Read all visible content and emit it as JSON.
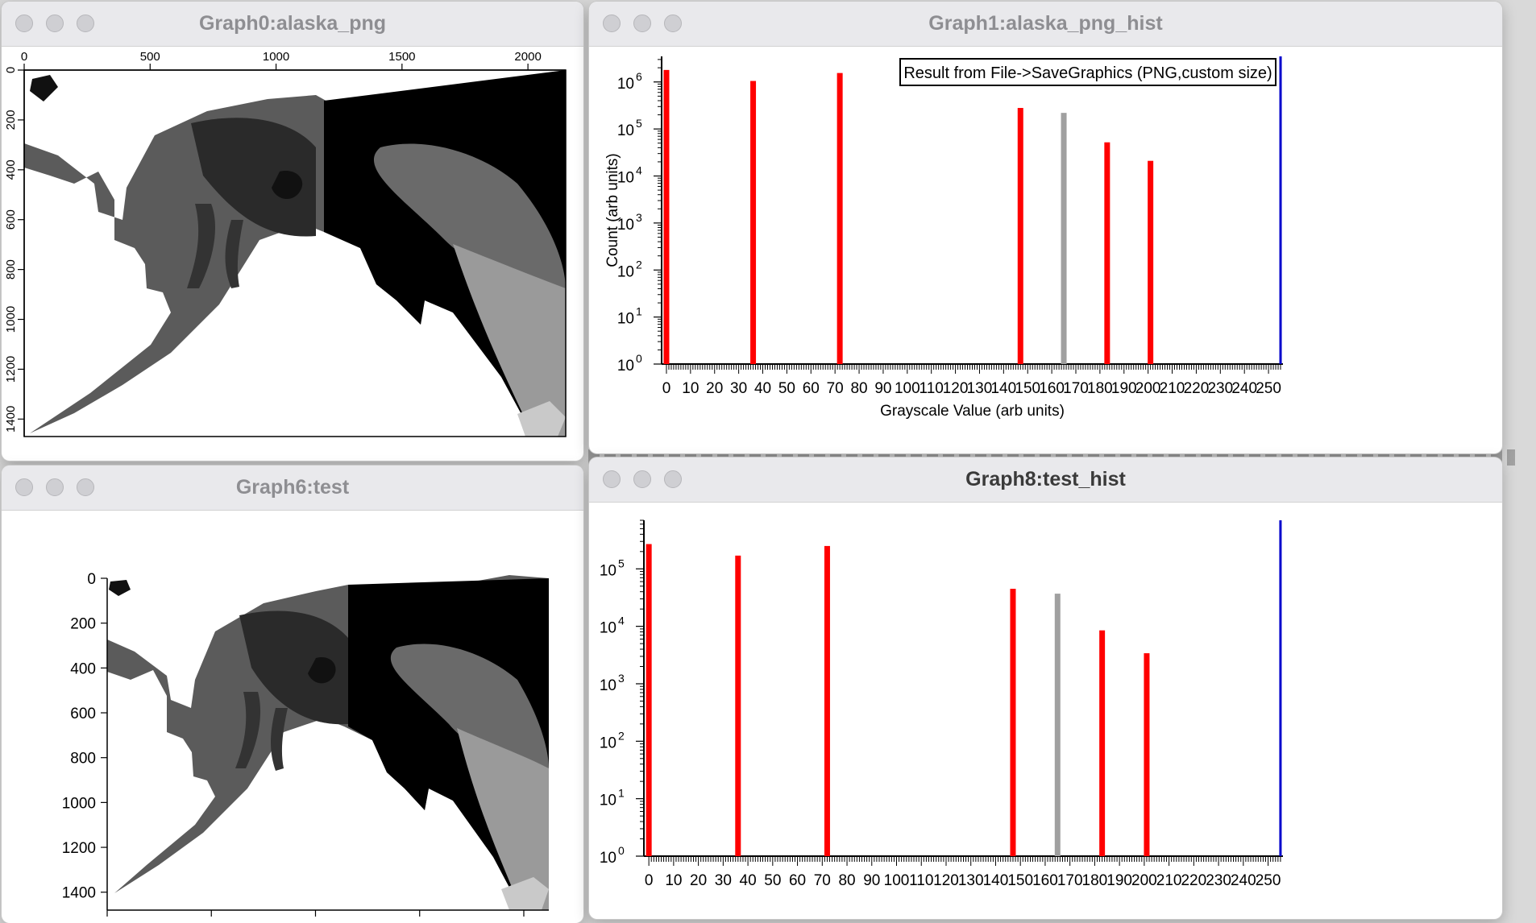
{
  "windows": {
    "graph0": {
      "title": "Graph0:alaska_png",
      "x_ticks": [
        "0",
        "500",
        "1000",
        "1500",
        "2000"
      ],
      "y_ticks": [
        "0",
        "200",
        "400",
        "600",
        "800",
        "1000",
        "1200",
        "1400"
      ]
    },
    "graph1": {
      "title": "Graph1:alaska_png_hist",
      "annotation": "Result from File->SaveGraphics (PNG,custom size)",
      "xlabel": "Grayscale Value (arb units)",
      "ylabel": "Count (arb units)",
      "x_ticks": [
        "0",
        "10",
        "20",
        "30",
        "40",
        "50",
        "60",
        "70",
        "80",
        "90",
        "100",
        "110",
        "120",
        "130",
        "140",
        "150",
        "160",
        "170",
        "180",
        "190",
        "200",
        "210",
        "220",
        "230",
        "240",
        "250"
      ],
      "y_ticks": [
        "10",
        "10",
        "10",
        "10",
        "10",
        "10",
        "10"
      ],
      "y_exps": [
        "0",
        "1",
        "2",
        "3",
        "4",
        "5",
        "6"
      ]
    },
    "graph6": {
      "title": "Graph6:test",
      "x_ticks": [
        "0",
        "500",
        "1000",
        "1500",
        "2000"
      ],
      "y_ticks": [
        "0",
        "200",
        "400",
        "600",
        "800",
        "1000",
        "1200",
        "1400"
      ]
    },
    "graph8": {
      "title": "Graph8:test_hist",
      "x_ticks": [
        "0",
        "10",
        "20",
        "30",
        "40",
        "50",
        "60",
        "70",
        "80",
        "90",
        "100",
        "110",
        "120",
        "130",
        "140",
        "150",
        "160",
        "170",
        "180",
        "190",
        "200",
        "210",
        "220",
        "230",
        "240",
        "250"
      ],
      "y_ticks": [
        "10",
        "10",
        "10",
        "10",
        "10",
        "10"
      ],
      "y_exps": [
        "0",
        "1",
        "2",
        "3",
        "4",
        "5"
      ]
    }
  },
  "chart_data": [
    {
      "type": "bar",
      "name": "alaska_png_hist",
      "yscale": "log",
      "xlim": [
        -2,
        256
      ],
      "ylim": [
        1,
        3500000
      ],
      "x": [
        0,
        36,
        72,
        147,
        165,
        183,
        201,
        255
      ],
      "values": [
        1800000,
        1050000,
        1550000,
        280000,
        220000,
        52000,
        21000,
        3500000
      ],
      "colors": [
        "#ff0000",
        "#ff0000",
        "#ff0000",
        "#ff0000",
        "#a0a0a0",
        "#ff0000",
        "#ff0000",
        "#0000cc"
      ]
    },
    {
      "type": "bar",
      "name": "test_hist",
      "yscale": "log",
      "xlim": [
        -2,
        256
      ],
      "ylim": [
        1,
        700000
      ],
      "x": [
        0,
        36,
        72,
        147,
        165,
        183,
        201,
        255
      ],
      "values": [
        270000,
        170000,
        250000,
        45000,
        37000,
        8500,
        3400,
        700000
      ],
      "colors": [
        "#ff0000",
        "#ff0000",
        "#ff0000",
        "#ff0000",
        "#a0a0a0",
        "#ff0000",
        "#ff0000",
        "#0000cc"
      ]
    }
  ]
}
